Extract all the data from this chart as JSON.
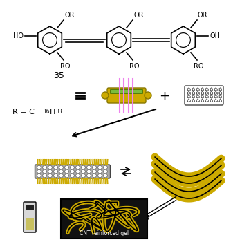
{
  "background_color": "#ffffff",
  "opv_label": "35",
  "r_label": "R = C16H33",
  "cnt_label": "CNT reinforced gel",
  "pink_color": "#ee82ee",
  "yellow_color": "#ccaa00",
  "green_color": "#7cbc3c",
  "cnt_color": "#444444",
  "cnt_bg": "#aaaaaa",
  "gold_color": "#c8a800",
  "black_color": "#000000",
  "gray_color": "#888888"
}
